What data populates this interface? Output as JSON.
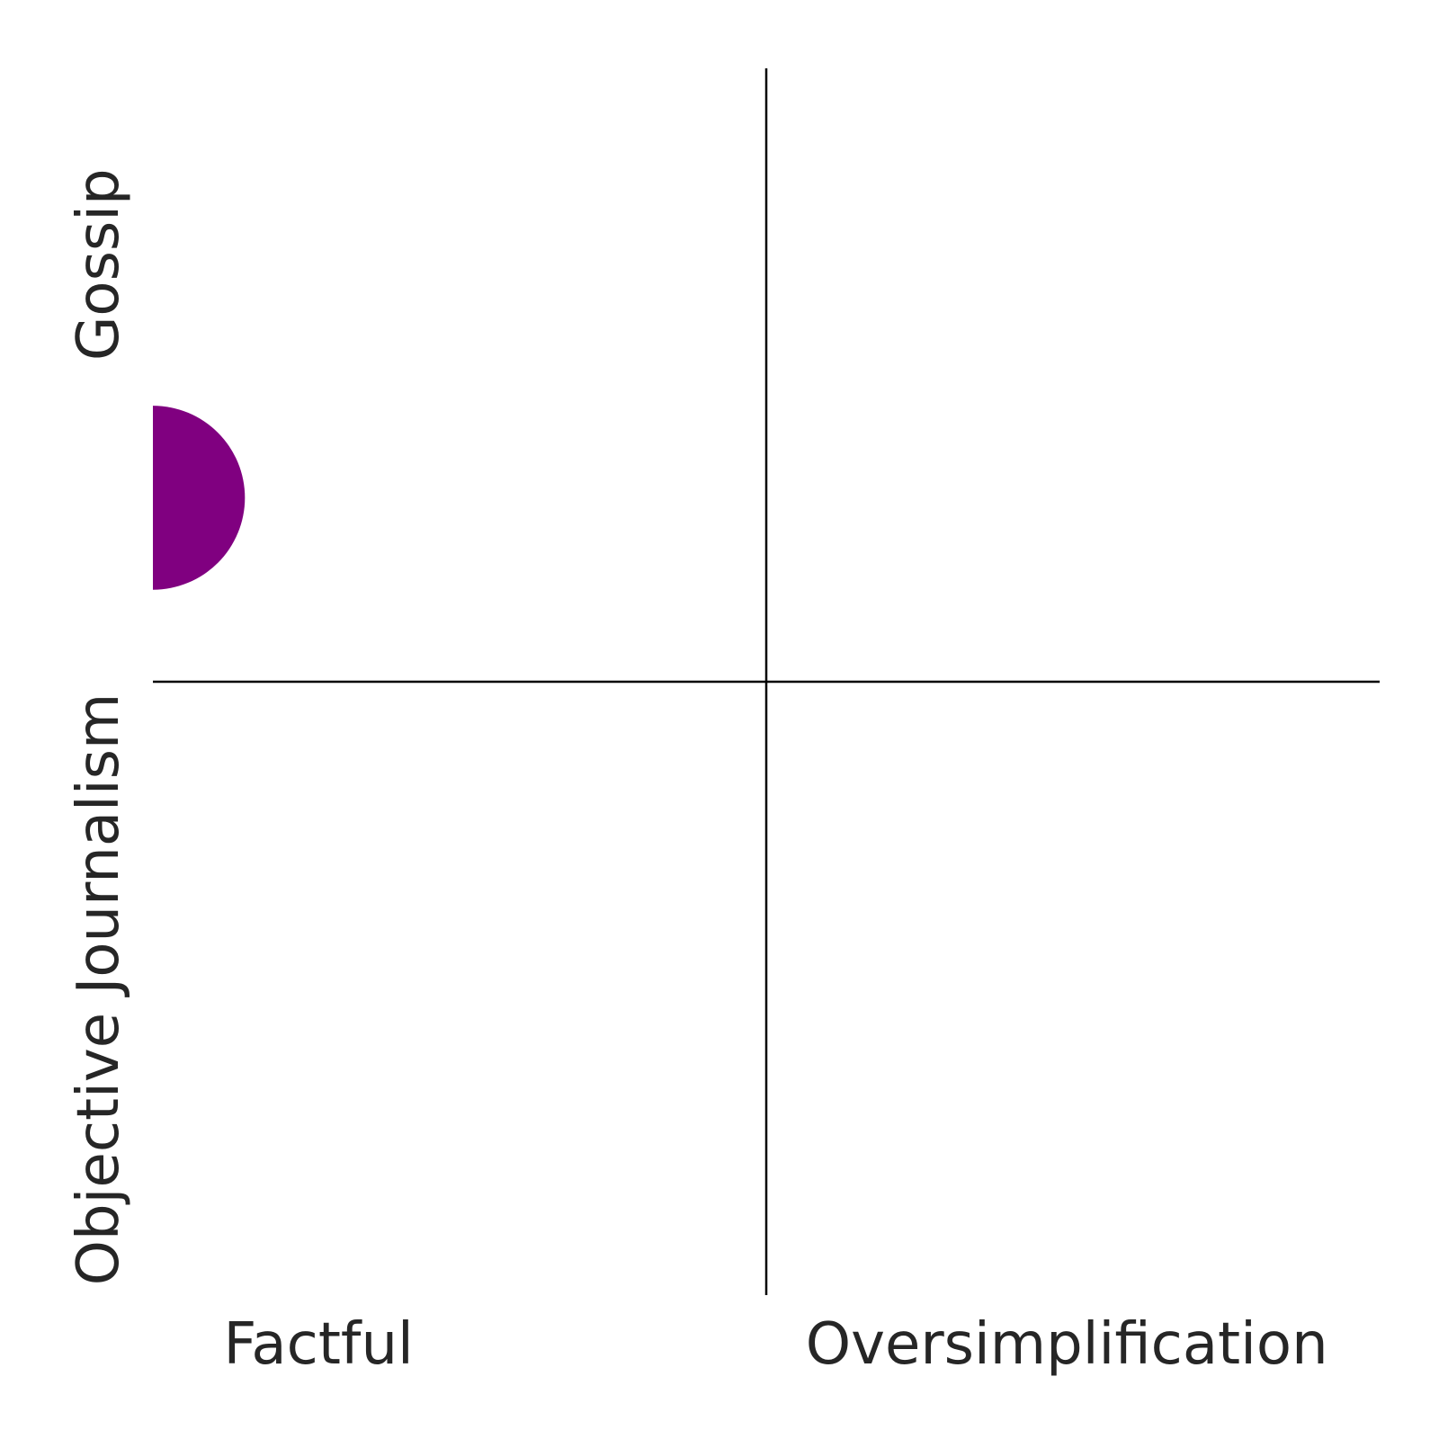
{
  "chart_data": {
    "type": "scatter",
    "title": "",
    "xlabel": "",
    "ylabel": "",
    "xlim": [
      0,
      1
    ],
    "ylim": [
      0,
      1
    ],
    "grid": false,
    "x_labels": [
      "Factful",
      "Oversimplification"
    ],
    "y_labels": [
      "Objective Journalism",
      "Gossip"
    ],
    "dividers": {
      "x": 0.5,
      "y": 0.5
    },
    "points": [
      {
        "x": 0.0,
        "y": 0.65,
        "size": 0.075,
        "color": "#800080",
        "shape": "circle"
      }
    ]
  }
}
